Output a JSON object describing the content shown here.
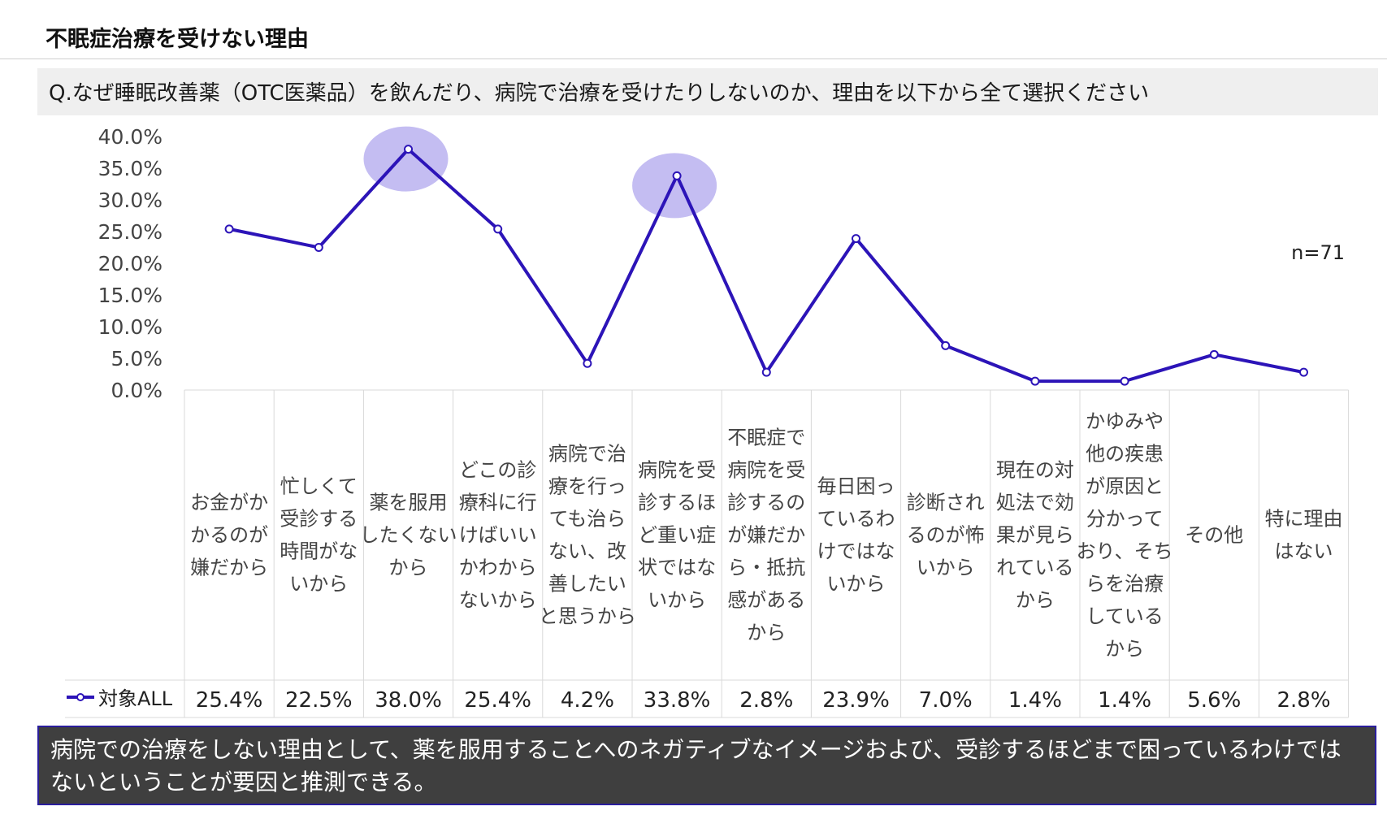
{
  "page": {
    "title": "不眠症治療を受けない理由",
    "question": "Q.なぜ睡眠改善薬（OTC医薬品）を飲んだり、病院で治療を受けたりしないのか、理由を以下から全て選択ください",
    "sample_size": "n=71",
    "conclusion": "病院での治療をしない理由として、薬を服用することへのネガティブなイメージおよび、受診するほどまで困っているわけではないということが要因と推測できる。"
  },
  "colors": {
    "line": "#2c14b8",
    "highlight": "#c4bdf2",
    "grid": "#d9d9d9",
    "conclusion_bg": "#3f3f3f",
    "conclusion_border": "#2a1e9c"
  },
  "chart_data": {
    "type": "line",
    "title": "",
    "xlabel": "",
    "ylabel": "",
    "ylim": [
      0,
      40
    ],
    "y_ticks": [
      "0.0%",
      "5.0%",
      "10.0%",
      "15.0%",
      "20.0%",
      "25.0%",
      "30.0%",
      "35.0%",
      "40.0%"
    ],
    "categories": [
      [
        "お金がか",
        "かるのが",
        "嫌だから"
      ],
      [
        "忙しくて",
        "受診する",
        "時間がな",
        "いから"
      ],
      [
        "薬を服用",
        "したくない",
        "から"
      ],
      [
        "どこの診",
        "療科に行",
        "けばいい",
        "かわから",
        "ないから"
      ],
      [
        "病院で治",
        "療を行っ",
        "ても治ら",
        "ない、改",
        "善したい",
        "と思うから"
      ],
      [
        "病院を受",
        "診するほ",
        "ど重い症",
        "状ではな",
        "いから"
      ],
      [
        "不眠症で",
        "病院を受",
        "診するの",
        "が嫌だか",
        "ら・抵抗",
        "感がある",
        "から"
      ],
      [
        "毎日困っ",
        "ているわ",
        "けではな",
        "いから"
      ],
      [
        "診断され",
        "るのが怖",
        "いから"
      ],
      [
        "現在の対",
        "処法で効",
        "果が見ら",
        "れている",
        "から"
      ],
      [
        "かゆみや",
        "他の疾患",
        "が原因と",
        "分かって",
        "おり、そち",
        "らを治療",
        "している",
        "から"
      ],
      [
        "その他"
      ],
      [
        "特に理由",
        "はない"
      ]
    ],
    "series": [
      {
        "name": "対象ALL",
        "values": [
          25.4,
          22.5,
          38.0,
          25.4,
          4.2,
          33.8,
          2.8,
          23.9,
          7.0,
          1.4,
          1.4,
          5.6,
          2.8
        ],
        "labels": [
          "25.4%",
          "22.5%",
          "38.0%",
          "25.4%",
          "4.2%",
          "33.8%",
          "2.8%",
          "23.9%",
          "7.0%",
          "1.4%",
          "1.4%",
          "5.6%",
          "2.8%"
        ]
      }
    ],
    "highlighted_indices": [
      2,
      5
    ],
    "data_table": true,
    "grid": false
  }
}
